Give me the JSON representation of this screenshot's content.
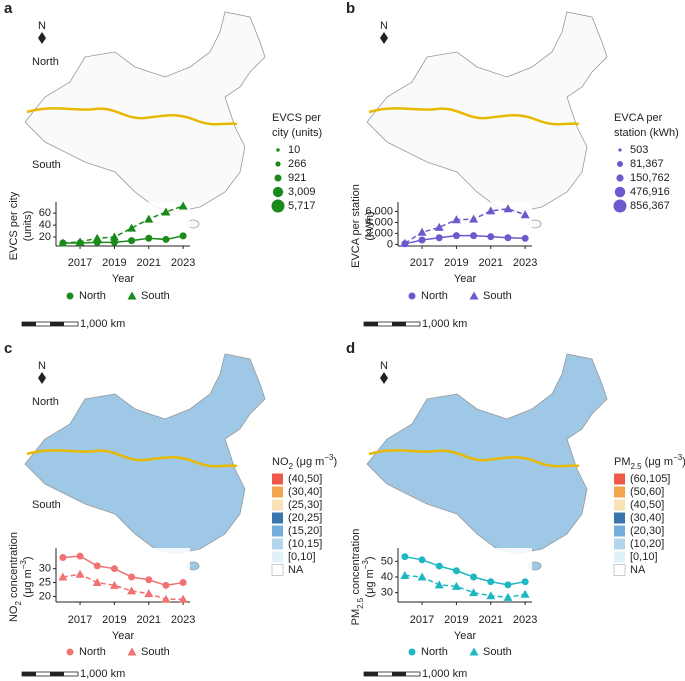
{
  "chart_data": [
    {
      "type": "line",
      "panel": "a",
      "north_label": "N",
      "region_labels": [
        "North",
        "South"
      ],
      "scale_label": "1,000 km",
      "map_legend": {
        "title": [
          [
            "EVCS per"
          ],
          [
            "city (units)"
          ]
        ],
        "color": "#1a8a1a",
        "entries": [
          10,
          266,
          921,
          {
            "value": 3009,
            "label": "3,009"
          },
          {
            "value": 5717,
            "label": "5,717"
          }
        ]
      },
      "x": [
        2016,
        2017,
        2018,
        2019,
        2020,
        2021,
        2022,
        2023
      ],
      "xlim": [
        2015.6,
        2023.4
      ],
      "xticks": [
        2017,
        2019,
        2021,
        2023
      ],
      "ylim": [
        5,
        72
      ],
      "yticks": [
        20,
        40,
        60
      ],
      "x_label": "Year",
      "y_label": [
        [
          "EVCS per city"
        ],
        [
          "(units)"
        ]
      ],
      "series": [
        {
          "name": "North",
          "color": "#1a8a1a",
          "marker": "circle",
          "dash": "solid",
          "values": [
            10,
            10,
            11,
            11,
            14,
            18,
            16,
            22
          ]
        },
        {
          "name": "South",
          "color": "#1a8a1a",
          "marker": "triangle",
          "dash": "dashed",
          "values": [
            10,
            12,
            18,
            20,
            35,
            50,
            62,
            72
          ]
        }
      ]
    },
    {
      "type": "line",
      "panel": "b",
      "north_label": "N",
      "scale_label": "1,000 km",
      "map_legend": {
        "title": [
          [
            "EVCA per"
          ],
          [
            "station (kWh)"
          ]
        ],
        "color": "#6a5acd",
        "entries": [
          503,
          {
            "value": 81367,
            "label": "81,367"
          },
          {
            "value": 150762,
            "label": "150,762"
          },
          {
            "value": 476916,
            "label": "476,916"
          },
          {
            "value": 856367,
            "label": "856,367"
          }
        ]
      },
      "x": [
        2016,
        2017,
        2018,
        2019,
        2020,
        2021,
        2022,
        2023
      ],
      "xlim": [
        2015.6,
        2023.4
      ],
      "xticks": [
        2017,
        2019,
        2021,
        2023
      ],
      "ylim": [
        -300,
        7000
      ],
      "yticks": [
        0,
        {
          "value": 2000,
          "label": "2,000"
        },
        {
          "value": 4000,
          "label": "4,000"
        },
        {
          "value": 6000,
          "label": "6,000"
        }
      ],
      "x_label": "Year",
      "y_label": [
        [
          "EVCA per station"
        ],
        [
          "(kWh)"
        ]
      ],
      "series": [
        {
          "name": "North",
          "color": "#6a5acd",
          "marker": "circle",
          "dash": "solid",
          "values": [
            100,
            800,
            1200,
            1600,
            1600,
            1400,
            1200,
            1100
          ]
        },
        {
          "name": "South",
          "color": "#6a5acd",
          "marker": "triangle",
          "dash": "dashed",
          "values": [
            200,
            2200,
            3100,
            4500,
            4600,
            6100,
            6500,
            5400
          ]
        }
      ]
    },
    {
      "type": "line",
      "panel": "c",
      "north_label": "N",
      "region_labels": [
        "North",
        "South"
      ],
      "scale_label": "1,000 km",
      "map_legend": {
        "title": [
          [
            "NO",
            {
              "sub": "2"
            },
            " (μg m",
            {
              "sup": "−3"
            },
            ")"
          ]
        ],
        "entries": [
          {
            "label": "(40,50]",
            "color": "#ef5a48"
          },
          {
            "label": "(30,40]",
            "color": "#f4a44c"
          },
          {
            "label": "(25,30]",
            "color": "#fae2b8"
          },
          {
            "label": "(20,25]",
            "color": "#3b75ad"
          },
          {
            "label": "(15,20]",
            "color": "#76aedb"
          },
          {
            "label": "(10,15]",
            "color": "#b3d6ec"
          },
          {
            "label": "[0,10]",
            "color": "#e0f1fa"
          },
          {
            "label": "NA",
            "color": "#ffffff"
          }
        ]
      },
      "x": [
        2016,
        2017,
        2018,
        2019,
        2020,
        2021,
        2022,
        2023
      ],
      "xlim": [
        2015.6,
        2023.4
      ],
      "xticks": [
        2017,
        2019,
        2021,
        2023
      ],
      "ylim": [
        18,
        36
      ],
      "yticks": [
        20,
        25,
        30
      ],
      "x_label": "Year",
      "y_label": [
        [
          "NO",
          {
            "sub": "2"
          },
          " concentration"
        ],
        [
          "(μg m",
          {
            "sup": "−3"
          },
          ")"
        ]
      ],
      "series": [
        {
          "name": "North",
          "color": "#f07272",
          "marker": "circle",
          "dash": "solid",
          "values": [
            34,
            34.5,
            31,
            30,
            27,
            26,
            24,
            25
          ]
        },
        {
          "name": "South",
          "color": "#f07272",
          "marker": "triangle",
          "dash": "dashed",
          "values": [
            27,
            28,
            25,
            24,
            22,
            21,
            19,
            19
          ]
        }
      ]
    },
    {
      "type": "line",
      "panel": "d",
      "north_label": "N",
      "scale_label": "1,000 km",
      "map_legend": {
        "title": [
          [
            "PM",
            {
              "sub": "2.5"
            },
            " (μg m",
            {
              "sup": "−3"
            },
            ")"
          ]
        ],
        "entries": [
          {
            "label": "(60,105]",
            "color": "#ef5a48"
          },
          {
            "label": "(50,60]",
            "color": "#f4a44c"
          },
          {
            "label": "(40,50]",
            "color": "#fae2b8"
          },
          {
            "label": "(30,40]",
            "color": "#3b75ad"
          },
          {
            "label": "(20,30]",
            "color": "#76aedb"
          },
          {
            "label": "(10,20]",
            "color": "#b3d6ec"
          },
          {
            "label": "[0,10]",
            "color": "#e0f1fa"
          },
          {
            "label": "NA",
            "color": "#ffffff"
          }
        ]
      },
      "x": [
        2016,
        2017,
        2018,
        2019,
        2020,
        2021,
        2022,
        2023
      ],
      "xlim": [
        2015.6,
        2023.4
      ],
      "xticks": [
        2017,
        2019,
        2021,
        2023
      ],
      "ylim": [
        24,
        56
      ],
      "yticks": [
        30,
        40,
        50
      ],
      "x_label": "Year",
      "y_label": [
        [
          "PM",
          {
            "sub": "2.5"
          },
          " concentration"
        ],
        [
          "(μg m",
          {
            "sup": "−3"
          },
          ")"
        ]
      ],
      "series": [
        {
          "name": "North",
          "color": "#1fb8c2",
          "marker": "circle",
          "dash": "solid",
          "values": [
            53,
            51,
            47,
            44,
            40,
            37,
            35,
            37
          ]
        },
        {
          "name": "South",
          "color": "#1fb8c2",
          "marker": "triangle",
          "dash": "dashed",
          "values": [
            41,
            40,
            35,
            34,
            30,
            28,
            27,
            29
          ]
        }
      ]
    }
  ]
}
